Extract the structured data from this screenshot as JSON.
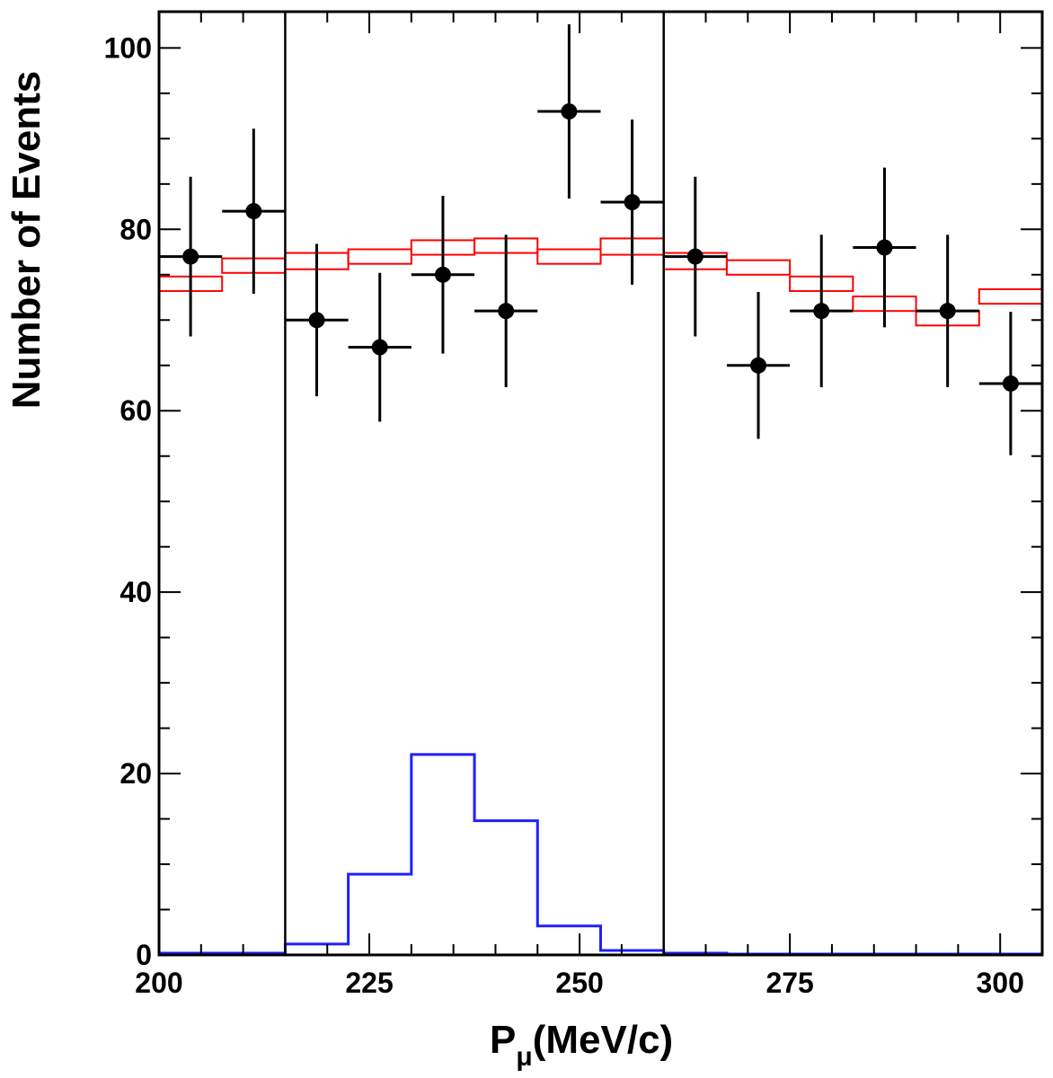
{
  "chart_data": {
    "type": "histogram",
    "xlabel_main": "P",
    "xlabel_sub": "μ",
    "xlabel_units": "(MeV/c)",
    "ylabel": "Number of Events",
    "xlim": [
      200,
      305
    ],
    "ylim": [
      0,
      104
    ],
    "x_ticks": [
      200,
      225,
      250,
      275,
      300
    ],
    "y_ticks": [
      0,
      20,
      40,
      60,
      80,
      100
    ],
    "bin_edges": [
      200,
      207.5,
      215,
      222.5,
      230,
      237.5,
      245,
      252.5,
      260,
      267.5,
      275,
      282.5,
      290,
      297.5,
      305
    ],
    "data_points": [
      {
        "x": 203.75,
        "y": 77,
        "yerr": 8.8
      },
      {
        "x": 211.25,
        "y": 82,
        "yerr": 9.1
      },
      {
        "x": 218.75,
        "y": 70,
        "yerr": 8.4
      },
      {
        "x": 226.25,
        "y": 67,
        "yerr": 8.2
      },
      {
        "x": 233.75,
        "y": 75,
        "yerr": 8.7
      },
      {
        "x": 241.25,
        "y": 71,
        "yerr": 8.4
      },
      {
        "x": 248.75,
        "y": 93,
        "yerr": 9.6
      },
      {
        "x": 256.25,
        "y": 83,
        "yerr": 9.1
      },
      {
        "x": 263.75,
        "y": 77,
        "yerr": 8.8
      },
      {
        "x": 271.25,
        "y": 65,
        "yerr": 8.1
      },
      {
        "x": 278.75,
        "y": 71,
        "yerr": 8.4
      },
      {
        "x": 286.25,
        "y": 78,
        "yerr": 8.8
      },
      {
        "x": 293.75,
        "y": 71,
        "yerr": 8.4
      },
      {
        "x": 301.25,
        "y": 63,
        "yerr": 7.9
      }
    ],
    "background_band": {
      "color": "#ff0000",
      "low": [
        73.2,
        75.2,
        75.6,
        76.2,
        77.2,
        77.4,
        76.2,
        77.2,
        75.6,
        75.0,
        73.2,
        71.0,
        69.4,
        71.8
      ],
      "high": [
        74.8,
        76.8,
        77.4,
        77.8,
        78.8,
        79.0,
        77.8,
        79.0,
        77.4,
        76.6,
        74.8,
        72.6,
        71.0,
        73.4
      ]
    },
    "signal_histogram": {
      "color": "#1f1fff",
      "values": [
        0.2,
        0.2,
        1.2,
        8.9,
        22.1,
        14.8,
        3.2,
        0.5,
        0.2,
        0.1,
        0.1,
        0.1,
        0.1,
        0.1
      ]
    },
    "vertical_lines": [
      215,
      260
    ]
  }
}
